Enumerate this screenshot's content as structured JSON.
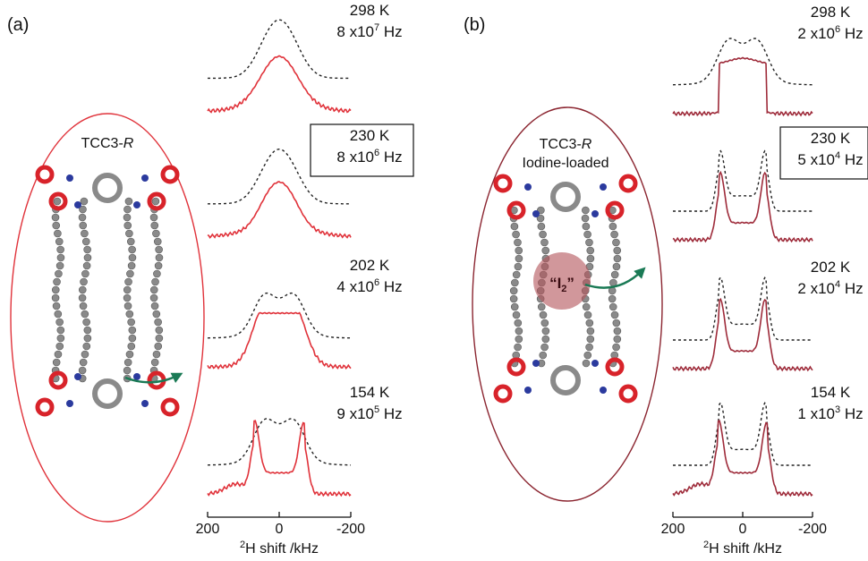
{
  "panels": [
    {
      "label": "(a)",
      "molecule_label": "TCC3-",
      "molecule_label_italic": "R",
      "molecule_sublabel": "",
      "spectrum_color": "#e0323a",
      "ellipse_color": "#e0323a",
      "guest_label": "",
      "spectra": [
        {
          "temp": "298 K",
          "rate_mant": "8 x10",
          "rate_exp": "7",
          "rate_unit": " Hz",
          "boxed": false
        },
        {
          "temp": "230 K",
          "rate_mant": "8 x10",
          "rate_exp": "6",
          "rate_unit": " Hz",
          "boxed": true
        },
        {
          "temp": "202 K",
          "rate_mant": "4 x10",
          "rate_exp": "6",
          "rate_unit": " Hz",
          "boxed": false
        },
        {
          "temp": "154 K",
          "rate_mant": "9 x10",
          "rate_exp": "5",
          "rate_unit": " Hz",
          "boxed": false
        }
      ],
      "xaxis": {
        "ticks": [
          "200",
          "0",
          "-200"
        ],
        "title_sup": "2",
        "title": "H shift /kHz"
      }
    },
    {
      "label": "(b)",
      "molecule_label": "TCC3-",
      "molecule_label_italic": "R",
      "molecule_sublabel": "Iodine-loaded",
      "spectrum_color": "#9e2b3a",
      "ellipse_color": "#8b2530",
      "guest_label": "“I",
      "guest_label_sub": "2",
      "guest_label_end": "”",
      "spectra": [
        {
          "temp": "298 K",
          "rate_mant": "2 x10",
          "rate_exp": "6",
          "rate_unit": " Hz",
          "boxed": false
        },
        {
          "temp": "230 K",
          "rate_mant": "5 x10",
          "rate_exp": "4",
          "rate_unit": " Hz",
          "boxed": true
        },
        {
          "temp": "202 K",
          "rate_mant": "2 x10",
          "rate_exp": "4",
          "rate_unit": " Hz",
          "boxed": false
        },
        {
          "temp": "154 K",
          "rate_mant": "1 x10",
          "rate_exp": "3",
          "rate_unit": " Hz",
          "boxed": false
        }
      ],
      "xaxis": {
        "ticks": [
          "200",
          "0",
          "-200"
        ],
        "title_sup": "2",
        "title": "H shift /kHz"
      }
    }
  ]
}
